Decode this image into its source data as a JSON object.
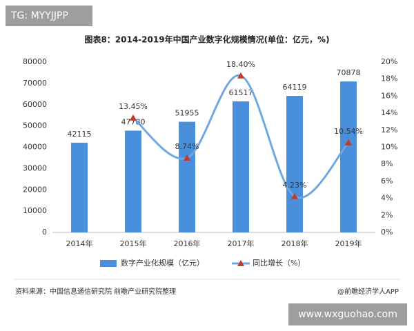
{
  "chart_data": {
    "type": "bar-line",
    "title": "图表8：2014-2019年中国产业数字化规模情况(单位：亿元，%)",
    "categories": [
      "2014年",
      "2015年",
      "2016年",
      "2017年",
      "2018年",
      "2019年"
    ],
    "series": [
      {
        "name": "数字产业化规模（亿元）",
        "type": "bar",
        "color": "#4a8fdb",
        "values": [
          42115,
          47780,
          51955,
          61517,
          64119,
          70878
        ]
      },
      {
        "name": "同比增长（%）",
        "type": "line",
        "axis": "y2",
        "color": "#6fa8e0",
        "marker_color": "#c0392b",
        "values": [
          null,
          13.45,
          8.74,
          18.4,
          4.23,
          10.54
        ],
        "value_labels": [
          null,
          "13.45%",
          "8.74%",
          "18.40%",
          "4.23%",
          "10.54%"
        ]
      }
    ],
    "ylim": [
      0,
      80000
    ],
    "yticks": [
      0,
      10000,
      20000,
      30000,
      40000,
      50000,
      60000,
      70000,
      80000
    ],
    "y2lim": [
      0,
      20
    ],
    "y2ticks": [
      {
        "value": 0,
        "label": "0%"
      },
      {
        "value": 2,
        "label": "2%"
      },
      {
        "value": 4,
        "label": "4%"
      },
      {
        "value": 6,
        "label": "6%"
      },
      {
        "value": 8,
        "label": "8%"
      },
      {
        "value": 10,
        "label": "10%"
      },
      {
        "value": 12,
        "label": "12%"
      },
      {
        "value": 14,
        "label": "14%"
      },
      {
        "value": 16,
        "label": "16%"
      },
      {
        "value": 18,
        "label": "18%"
      },
      {
        "value": 20,
        "label": "20%"
      }
    ],
    "grid": false,
    "legend": "bottom"
  },
  "source": "资料来源：中国信息通信研究院 前瞻产业研究院整理",
  "credit": "@前瞻经济学人APP",
  "overlay_top": "TG: MYYJJPP",
  "overlay_bottom": "www.wxguohao.com"
}
